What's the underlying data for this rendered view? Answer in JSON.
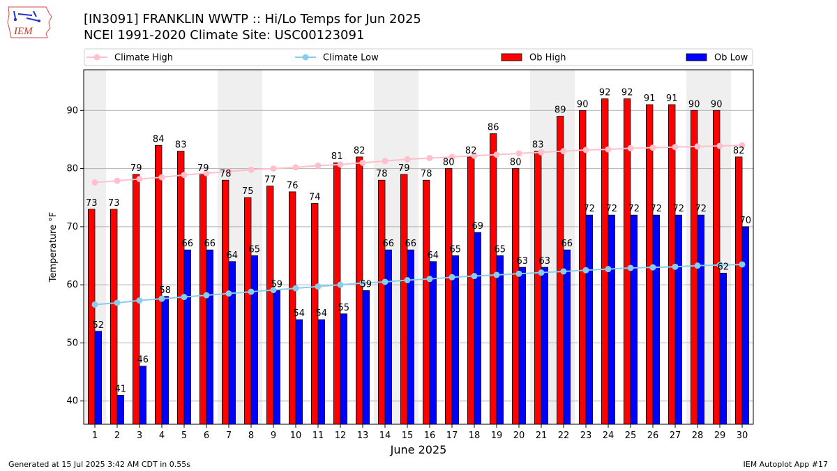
{
  "header": {
    "logo_text": "IEM",
    "title_line1": "[IN3091] FRANKLIN WWTP :: Hi/Lo Temps for Jun 2025",
    "title_line2": "NCEI 1991-2020 Climate Site: USC00123091"
  },
  "footer": {
    "generated": "Generated at 15 Jul 2025 3:42 AM CDT in 0.55s",
    "app": "IEM Autoplot App #17"
  },
  "chart_data": {
    "type": "bar",
    "xlabel": "June 2025",
    "ylabel": "Temperature °F",
    "ylim": [
      36,
      97
    ],
    "yticks": [
      40,
      50,
      60,
      70,
      80,
      90
    ],
    "grid": true,
    "legend_position": "top",
    "categories": [
      "1",
      "2",
      "3",
      "4",
      "5",
      "6",
      "7",
      "8",
      "9",
      "10",
      "11",
      "12",
      "13",
      "14",
      "15",
      "16",
      "17",
      "18",
      "19",
      "20",
      "21",
      "22",
      "23",
      "24",
      "25",
      "26",
      "27",
      "28",
      "29",
      "30"
    ],
    "weekend_shading_days": [
      1,
      7,
      8,
      14,
      15,
      21,
      22,
      28,
      29
    ],
    "series": [
      {
        "name": "Climate High",
        "kind": "line",
        "color": "#ffc0cb",
        "values": [
          77.6,
          77.9,
          78.2,
          78.5,
          78.9,
          79.2,
          79.5,
          79.8,
          80.0,
          80.2,
          80.5,
          80.7,
          81.0,
          81.3,
          81.6,
          81.8,
          82.0,
          82.2,
          82.4,
          82.6,
          82.8,
          83.0,
          83.2,
          83.3,
          83.5,
          83.6,
          83.7,
          83.8,
          83.9,
          84.0
        ]
      },
      {
        "name": "Climate Low",
        "kind": "line",
        "color": "#87ceeb",
        "values": [
          56.6,
          56.9,
          57.3,
          57.6,
          57.9,
          58.2,
          58.5,
          58.8,
          59.1,
          59.4,
          59.7,
          60.0,
          60.3,
          60.5,
          60.8,
          61.0,
          61.3,
          61.5,
          61.7,
          61.9,
          62.1,
          62.3,
          62.5,
          62.7,
          62.9,
          63.0,
          63.1,
          63.3,
          63.4,
          63.5
        ]
      },
      {
        "name": "Ob High",
        "kind": "bar",
        "color": "#ff0000",
        "values": [
          73,
          73,
          79,
          84,
          83,
          79,
          78,
          75,
          77,
          76,
          74,
          81,
          82,
          78,
          79,
          78,
          80,
          82,
          86,
          80,
          83,
          89,
          90,
          92,
          92,
          91,
          91,
          90,
          90,
          82
        ]
      },
      {
        "name": "Ob Low",
        "kind": "bar",
        "color": "#0000ff",
        "values": [
          52,
          41,
          46,
          58,
          66,
          66,
          64,
          65,
          59,
          54,
          54,
          55,
          59,
          66,
          66,
          64,
          65,
          69,
          65,
          63,
          63,
          66,
          72,
          72,
          72,
          72,
          72,
          72,
          62,
          70
        ]
      }
    ]
  }
}
